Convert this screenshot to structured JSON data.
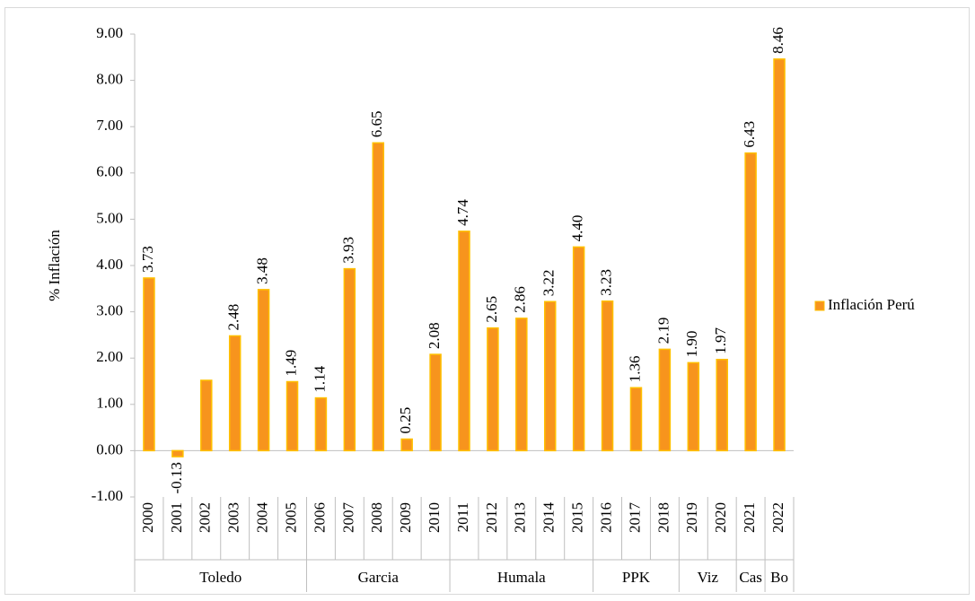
{
  "chart_data": {
    "type": "bar",
    "y_label": "% Inflación",
    "categories": [
      "2000",
      "2001",
      "2002",
      "2003",
      "2004",
      "2005",
      "2006",
      "2007",
      "2008",
      "2009",
      "2010",
      "2011",
      "2012",
      "2013",
      "2014",
      "2015",
      "2016",
      "2017",
      "2018",
      "2019",
      "2020",
      "2021",
      "2022"
    ],
    "groups": [
      {
        "label": "Toledo",
        "size": 6
      },
      {
        "label": "Garcia",
        "size": 5
      },
      {
        "label": "Humala",
        "size": 5
      },
      {
        "label": "PPK",
        "size": 3
      },
      {
        "label": "Viz",
        "size": 2
      },
      {
        "label": "Cas",
        "size": 1
      },
      {
        "label": "Bo",
        "size": 1
      }
    ],
    "series": [
      {
        "name": "Inflación Perú",
        "color": "#F7941D",
        "edge_color": "#FFC000",
        "values": [
          3.73,
          -0.13,
          1.52,
          2.48,
          3.48,
          1.49,
          1.14,
          3.93,
          6.65,
          0.25,
          2.08,
          4.74,
          2.65,
          2.86,
          3.22,
          4.4,
          3.23,
          1.36,
          2.19,
          1.9,
          1.97,
          6.43,
          8.46
        ],
        "value_labels": [
          "3.73",
          "-0.13",
          null,
          "2.48",
          "3.48",
          "1.49",
          "1.14",
          "3.93",
          "6.65",
          "0.25",
          "2.08",
          "4.74",
          "2.65",
          "2.86",
          "3.22",
          "4.40",
          "3.23",
          "1.36",
          "2.19",
          "1.90",
          "1.97",
          "6.43",
          "8.46"
        ]
      }
    ],
    "ylim": [
      -1,
      9
    ],
    "yticks": [
      {
        "value": -1,
        "label": "-1.00"
      },
      {
        "value": 0,
        "label": "0.00"
      },
      {
        "value": 1,
        "label": "1.00"
      },
      {
        "value": 2,
        "label": "2.00"
      },
      {
        "value": 3,
        "label": "3.00"
      },
      {
        "value": 4,
        "label": "4.00"
      },
      {
        "value": 5,
        "label": "5.00"
      },
      {
        "value": 6,
        "label": "6.00"
      },
      {
        "value": 7,
        "label": "7.00"
      },
      {
        "value": 8,
        "label": "8.00"
      },
      {
        "value": 9,
        "label": "9.00"
      }
    ],
    "legend": "right"
  }
}
